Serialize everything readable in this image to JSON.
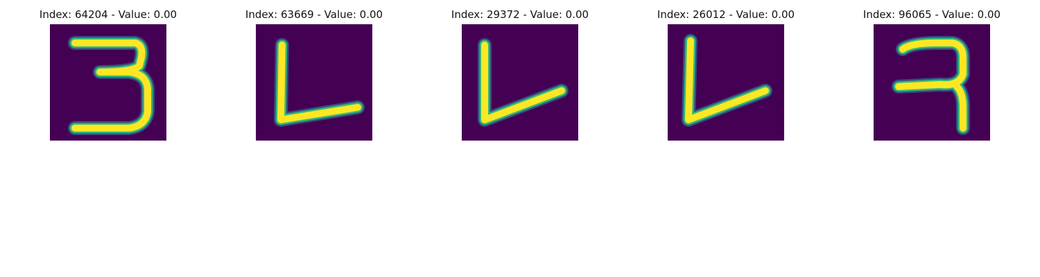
{
  "chart_data": {
    "type": "image_grid",
    "colormap": "viridis",
    "colors": {
      "background": "#440154",
      "edge": "#31688e",
      "mid": "#35b779",
      "peak": "#fde725"
    },
    "panels": [
      {
        "title": "Index: 64204 - Value: 0.00",
        "index": 64204,
        "value": 0.0,
        "glyph": "digit-3"
      },
      {
        "title": "Index: 63669 - Value: 0.00",
        "index": 63669,
        "value": 0.0,
        "glyph": "letter-L"
      },
      {
        "title": "Index: 29372 - Value: 0.00",
        "index": 29372,
        "value": 0.0,
        "glyph": "letter-L-slanted"
      },
      {
        "title": "Index: 26012 - Value: 0.00",
        "index": 26012,
        "value": 0.0,
        "glyph": "letter-L-slanted"
      },
      {
        "title": "Index: 96065 - Value: 0.00",
        "index": 96065,
        "value": 0.0,
        "glyph": "digit-3-variant"
      }
    ]
  }
}
